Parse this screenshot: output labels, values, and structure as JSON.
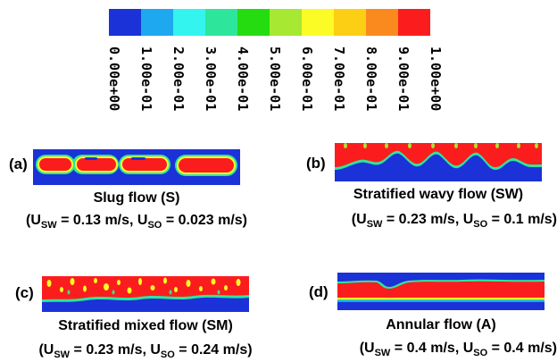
{
  "colorbar": {
    "colors": [
      "#1a32d8",
      "#1ea8f0",
      "#33f4ee",
      "#2de69c",
      "#25dc10",
      "#a6e832",
      "#fbfb26",
      "#fccf14",
      "#fb8a1e",
      "#fb1d1d"
    ],
    "ticks": [
      "0.00e+00",
      "1.00e-01",
      "2.00e-01",
      "3.00e-01",
      "4.00e-01",
      "5.00e-01",
      "6.00e-01",
      "7.00e-01",
      "8.00e-01",
      "9.00e-01",
      "1.00e+00"
    ]
  },
  "panels": [
    {
      "id": "a",
      "label": "(a)",
      "title": "Slug flow (S)",
      "u_prefix": "(U",
      "sw_sub": "SW",
      "sw_val": " = 0.13 m/s, U",
      "so_sub": "SO",
      "so_val": " = 0.023 m/s)"
    },
    {
      "id": "b",
      "label": "(b)",
      "title": "Stratified wavy flow (SW)",
      "u_prefix": "(U",
      "sw_sub": "SW",
      "sw_val": " = 0.23 m/s, U",
      "so_sub": "SO",
      "so_val": " = 0.1 m/s)"
    },
    {
      "id": "c",
      "label": "(c)",
      "title": "Stratified mixed flow (SM)",
      "u_prefix": "(U",
      "sw_sub": "SW",
      "sw_val": " = 0.23 m/s, U",
      "so_sub": "SO",
      "so_val": " = 0.24 m/s)"
    },
    {
      "id": "d",
      "label": "(d)",
      "title": "Annular flow (A)",
      "u_prefix": "(U",
      "sw_sub": "SW",
      "sw_val": " = 0.4 m/s, U",
      "so_sub": "SO",
      "so_val": " = 0.4 m/s)"
    }
  ]
}
